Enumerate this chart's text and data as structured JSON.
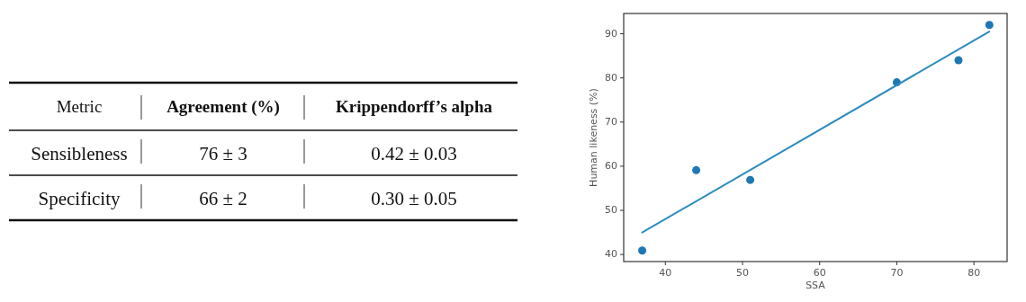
{
  "chart_data": [
    {
      "type": "other",
      "annotations": [
        "Metric",
        "Agreement (%)",
        "Krippendorff’s alpha",
        "Sensibleness",
        "76 ± 3",
        "0.42 ± 0.03",
        "Specificity",
        "66 ± 2",
        "0.30 ± 0.05"
      ]
    },
    {
      "type": "scatter",
      "xlabel": "SSA",
      "ylabel": "Human likeness (%)",
      "xlim": [
        34.6,
        84.3
      ],
      "ylim": [
        38.4,
        94.6
      ],
      "xticks": [
        40,
        50,
        60,
        70,
        80
      ],
      "yticks": [
        40,
        50,
        60,
        70,
        80,
        90
      ],
      "grid": false,
      "series": [
        {
          "type": "scatter",
          "marker": "circle",
          "color": "#1f77b4",
          "x": [
            37,
            44,
            51,
            70,
            78,
            82
          ],
          "values": [
            40.9,
            59.1,
            56.9,
            79.0,
            84.0,
            92.0
          ]
        },
        {
          "type": "line",
          "color": "#2b8cbe",
          "x": [
            37,
            82
          ],
          "values": [
            45,
            90.5
          ]
        }
      ]
    }
  ]
}
